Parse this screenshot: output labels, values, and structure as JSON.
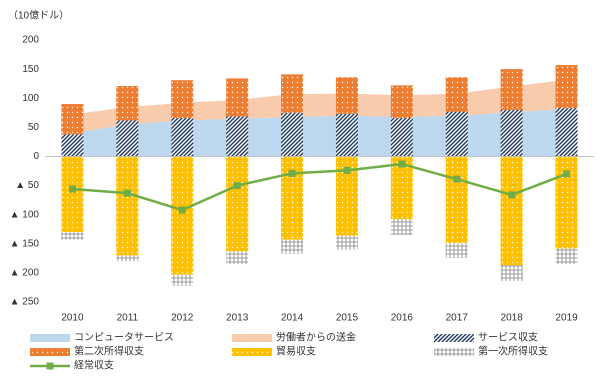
{
  "chart_data": {
    "type": "combo",
    "y_label": "（10億ドル）",
    "categories": [
      "2010",
      "2011",
      "2012",
      "2013",
      "2014",
      "2015",
      "2016",
      "2017",
      "2018",
      "2019"
    ],
    "ylim": [
      -250,
      200
    ],
    "yticks": [
      200,
      150,
      100,
      50,
      0,
      {
        "value": -50,
        "label": "▲ 50"
      },
      {
        "value": -100,
        "label": "▲ 100"
      },
      {
        "value": -150,
        "label": "▲ 150"
      },
      {
        "value": -200,
        "label": "▲ 200"
      },
      {
        "value": -250,
        "label": "▲ 250"
      }
    ],
    "series": [
      {
        "name": "コンピュータサービス",
        "mark": "area",
        "color": "#bdd7ee",
        "values": [
          40,
          55,
          62,
          65,
          68,
          70,
          68,
          70,
          76,
          82
        ]
      },
      {
        "name": "労働者からの送金",
        "mark": "area",
        "color": "#f8cbad",
        "values": [
          32,
          30,
          30,
          32,
          39,
          38,
          37,
          38,
          44,
          50
        ]
      },
      {
        "name": "サービス収支",
        "mark": "bar",
        "color": "#1f3864",
        "pattern": "hatch",
        "values": [
          38,
          62,
          66,
          69,
          75,
          73,
          66,
          77,
          80,
          83
        ]
      },
      {
        "name": "第二次所得収支",
        "mark": "bar",
        "color": "#ed7d31",
        "pattern": "dots",
        "values": [
          52,
          59,
          65,
          65,
          66,
          63,
          56,
          59,
          70,
          74
        ]
      },
      {
        "name": "貿易収支",
        "mark": "bar",
        "color": "#ffc000",
        "pattern": "dots",
        "values": [
          -130,
          -170,
          -203,
          -163,
          -143,
          -136,
          -108,
          -149,
          -187,
          -158
        ]
      },
      {
        "name": "第一次所得収支",
        "mark": "bar",
        "color": "#808080",
        "pattern": "grid",
        "values": [
          -13,
          -10,
          -19,
          -22,
          -24,
          -24,
          -27,
          -25,
          -27,
          -27
        ]
      },
      {
        "name": "経常収支",
        "mark": "line",
        "color": "#70ad47",
        "values": [
          -56,
          -63,
          -92,
          -50,
          -29,
          -24,
          -13,
          -39,
          -66,
          -30
        ]
      }
    ]
  }
}
